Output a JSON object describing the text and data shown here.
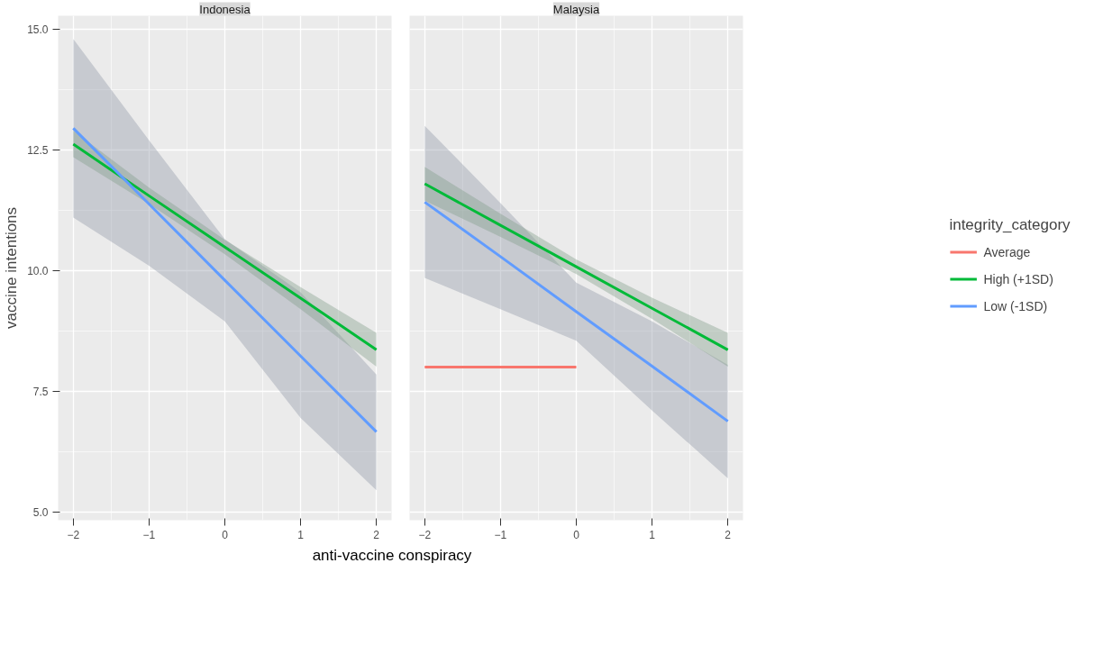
{
  "chart_data": [
    {
      "type": "line",
      "title": "Indonesia",
      "xlabel": "anti-vaccine conspiracy",
      "ylabel": "vaccine intentions",
      "xlim": [
        -2.2,
        2.2
      ],
      "ylim": [
        4.83,
        15.28
      ],
      "xticks": [
        -2,
        -1,
        0,
        1,
        2
      ],
      "yticks": [
        {
          "value": 5,
          "label": "5.0"
        },
        {
          "value": 7.5,
          "label": "7.5"
        },
        {
          "value": 10,
          "label": "10.0"
        },
        {
          "value": 12.5,
          "label": "12.5"
        },
        {
          "value": 15,
          "label": "15.0"
        }
      ],
      "grid": true,
      "legend": false,
      "line_style": "solid",
      "marker": "none",
      "series": [
        {
          "color": "#00ba38",
          "x": [
            -2,
            -1,
            0,
            1,
            2
          ],
          "values": [
            12.62,
            11.55,
            10.49,
            9.43,
            8.36
          ],
          "lower": [
            12.35,
            11.38,
            10.34,
            9.2,
            8.01
          ],
          "upper": [
            12.9,
            11.72,
            10.64,
            9.66,
            8.71
          ]
        },
        {
          "color": "#619cff",
          "x": [
            -2,
            -1,
            0,
            1,
            2
          ],
          "values": [
            12.95,
            11.38,
            9.8,
            8.23,
            6.66
          ],
          "lower": [
            11.1,
            10.1,
            8.95,
            6.95,
            5.45
          ],
          "upper": [
            14.8,
            12.7,
            10.65,
            9.55,
            7.85
          ]
        }
      ]
    },
    {
      "type": "line",
      "title": "Malaysia",
      "xlim": [
        -2.2,
        2.2
      ],
      "ylim": [
        4.83,
        15.28
      ],
      "xticks": [
        -2,
        -1,
        0,
        1,
        2
      ],
      "yticks": [
        5,
        7.5,
        10,
        12.5,
        15
      ],
      "tick_labels": "x",
      "grid": true,
      "legend": "right",
      "legend_title": "integrity_category",
      "line_style": "solid",
      "marker": "none",
      "series": [
        {
          "name": "Average",
          "color": "#f8766d",
          "x": [
            -2,
            0
          ],
          "values": [
            8.0,
            8.0
          ]
        },
        {
          "name": "High (+1SD)",
          "color": "#00ba38",
          "x": [
            -2,
            -1,
            0,
            1,
            2
          ],
          "values": [
            11.8,
            10.94,
            10.08,
            9.22,
            8.36
          ],
          "lower": [
            11.45,
            10.7,
            9.93,
            9.0,
            8.01
          ],
          "upper": [
            12.15,
            11.18,
            10.23,
            9.44,
            8.71
          ]
        },
        {
          "name": "Low (-1SD)",
          "color": "#619cff",
          "x": [
            -2,
            -1,
            0,
            1,
            2
          ],
          "values": [
            11.42,
            10.29,
            9.15,
            8.02,
            6.88
          ],
          "lower": [
            9.85,
            9.2,
            8.55,
            7.1,
            5.7
          ],
          "upper": [
            13.0,
            11.4,
            9.75,
            8.95,
            8.05
          ]
        }
      ]
    }
  ]
}
